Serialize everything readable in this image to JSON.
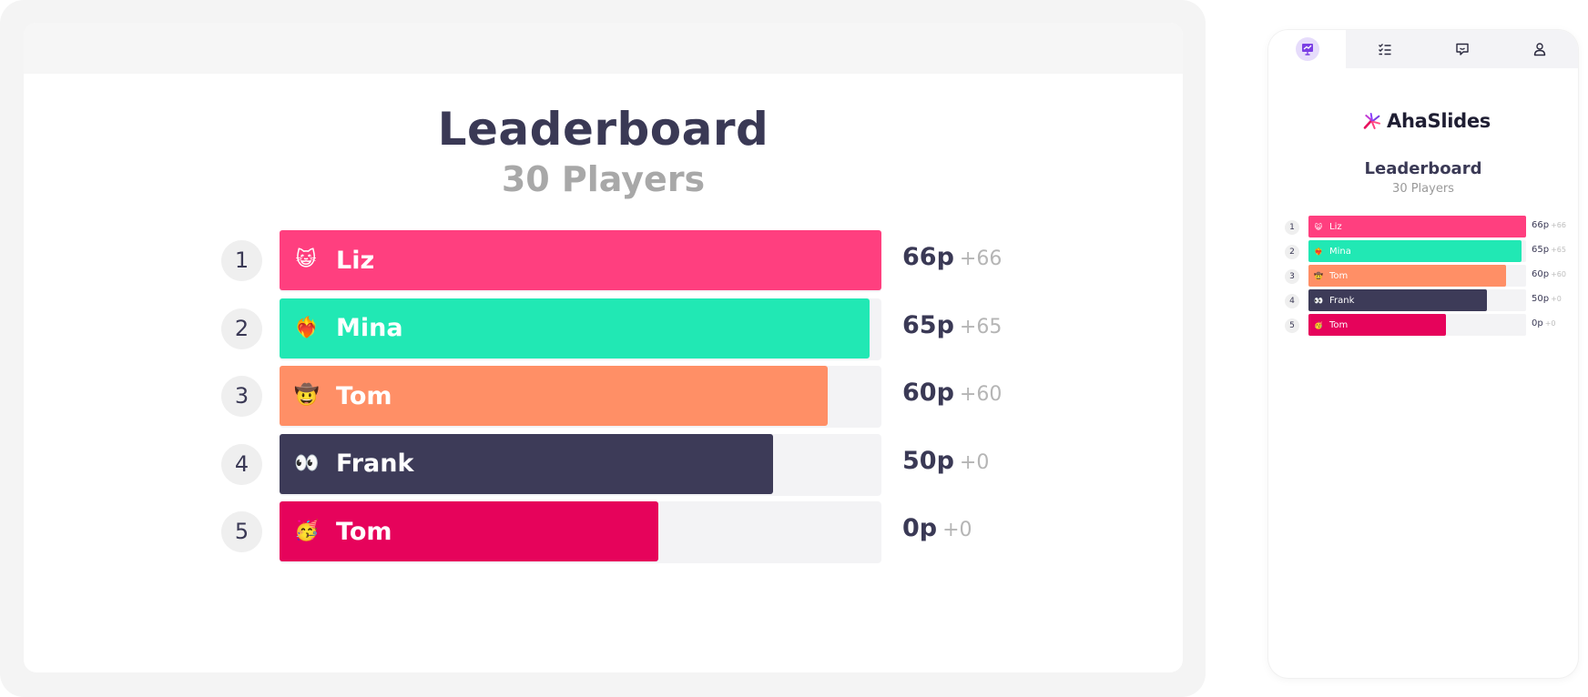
{
  "presenter": {
    "title": "Leaderboard",
    "subtitle": "30 Players"
  },
  "audience": {
    "logo_text": "AhaSlides",
    "title": "Leaderboard",
    "subtitle": "30 Players",
    "tabs": [
      {
        "icon": "presentation-icon",
        "active": true
      },
      {
        "icon": "checklist-icon",
        "active": false
      },
      {
        "icon": "chat-icon",
        "active": false
      },
      {
        "icon": "user-icon",
        "active": false
      }
    ]
  },
  "colors": {
    "pink": "#ff3f7f",
    "teal": "#21e8b4",
    "orange": "#ff8f66",
    "navy": "#3d3b58",
    "crimson": "#e6035b",
    "brand_purple": "#7b3fe4"
  },
  "chart_data": {
    "type": "bar",
    "orientation": "horizontal",
    "categories": [
      "Liz",
      "Mina",
      "Tom",
      "Frank",
      "Tom"
    ],
    "values": [
      66,
      65,
      60,
      50,
      0
    ],
    "gains": [
      66,
      65,
      60,
      0,
      0
    ],
    "bar_fill_fraction": [
      1.0,
      0.98,
      0.91,
      0.82,
      0.63
    ],
    "score_labels": [
      "66p",
      "65p",
      "60p",
      "50p",
      "0p"
    ],
    "gain_labels": [
      "+66",
      "+65",
      "+60",
      "+0",
      "+0"
    ],
    "ranks": [
      "1",
      "2",
      "3",
      "4",
      "5"
    ],
    "emojis": [
      "😺",
      "❤️‍🔥",
      "🤠",
      "👀",
      "🥳"
    ],
    "bar_colors": [
      "#ff3f7f",
      "#21e8b4",
      "#ff8f66",
      "#3d3b58",
      "#e6035b"
    ]
  }
}
